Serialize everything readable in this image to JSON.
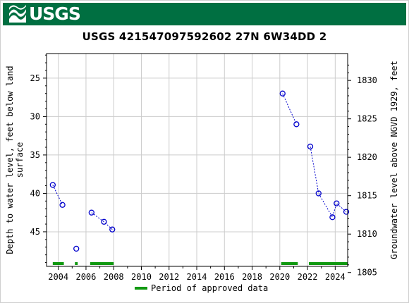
{
  "header": {
    "logo_text": "USGS",
    "logo_icon": "usgs-wave-icon"
  },
  "chart_data": {
    "type": "scatter",
    "title": "USGS 421547097592602  27N  6W34DD  2",
    "xlabel": "",
    "ylabel_left": "Depth to water level, feet below land surface",
    "ylabel_left_lines": [
      "Depth to water level, feet below land",
      "surface"
    ],
    "ylabel_right": "Groundwater level above NGVD 1929, feet",
    "x_ticks": [
      "2004",
      "2006",
      "2008",
      "2010",
      "2012",
      "2014",
      "2016",
      "2018",
      "2020",
      "2022",
      "2024"
    ],
    "xlim": [
      2003.15,
      2024.9
    ],
    "ylim_left": [
      49.5,
      21.8
    ],
    "left_ticks": [
      25,
      30,
      35,
      40,
      45
    ],
    "right_ticks": [
      1805,
      1810,
      1815,
      1820,
      1825,
      1830
    ],
    "grid": true,
    "series": [
      {
        "style": "dotted-line-with-circles",
        "color": "#0000cc",
        "segments": [
          [
            {
              "x": 2003.6,
              "y": 38.9
            },
            {
              "x": 2004.3,
              "y": 41.5
            }
          ],
          [
            {
              "x": 2005.3,
              "y": 47.2
            }
          ],
          [
            {
              "x": 2006.4,
              "y": 42.5
            },
            {
              "x": 2007.3,
              "y": 43.7
            },
            {
              "x": 2007.9,
              "y": 44.7
            }
          ],
          [
            {
              "x": 2020.2,
              "y": 27.0
            },
            {
              "x": 2021.2,
              "y": 31.0
            }
          ],
          [
            {
              "x": 2022.2,
              "y": 33.9
            },
            {
              "x": 2022.8,
              "y": 40.0
            },
            {
              "x": 2023.8,
              "y": 43.1
            },
            {
              "x": 2024.1,
              "y": 41.3
            },
            {
              "x": 2024.8,
              "y": 42.4
            }
          ]
        ]
      }
    ],
    "approved_periods": [
      [
        2003.6,
        2004.4
      ],
      [
        2005.2,
        2005.4
      ],
      [
        2006.3,
        2008.0
      ],
      [
        2020.1,
        2021.3
      ],
      [
        2022.1,
        2024.9
      ]
    ],
    "approved_color": "#119911",
    "legend": {
      "label": "Period of approved data",
      "placement": "bottom-center"
    }
  }
}
